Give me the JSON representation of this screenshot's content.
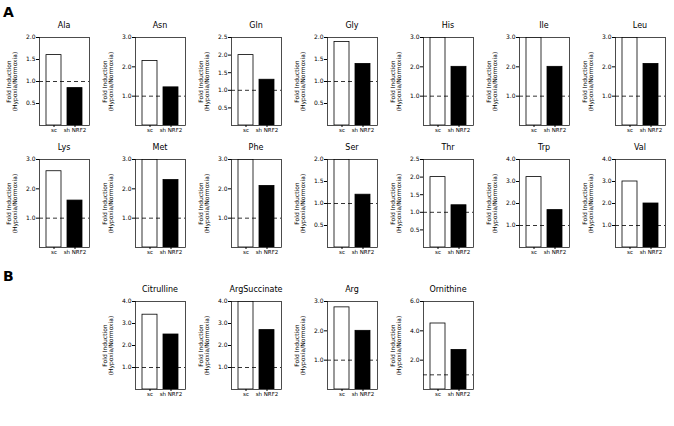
{
  "chart_data": [
    {
      "type": "bar",
      "title": "Ala",
      "annotations": [
        "A"
      ],
      "categories": [
        "sc",
        "sh NRF2"
      ],
      "values": [
        1.6,
        0.85
      ],
      "colors": [
        "white",
        "black"
      ],
      "ylim": [
        0,
        2
      ],
      "yticks": [
        0.5,
        {
          "value": 1,
          "label": "1.0"
        },
        1.5,
        {
          "value": 2,
          "label": "2.0"
        }
      ],
      "ylabel": "Fold Induction\n(Hypoxia/Normoxia)",
      "hline": 1
    },
    {
      "type": "bar",
      "title": "Asn",
      "categories": [
        "sc",
        "sh NRF2"
      ],
      "values": [
        2.2,
        1.3
      ],
      "colors": [
        "white",
        "black"
      ],
      "ylim": [
        0,
        3
      ],
      "yticks": [
        {
          "value": 1,
          "label": "1.0"
        },
        {
          "value": 2,
          "label": "2.0"
        },
        {
          "value": 3,
          "label": "3.0"
        }
      ],
      "ylabel": "Fold Induction\n(Hypoxia/Normoxia)",
      "hline": 1
    },
    {
      "type": "bar",
      "title": "Gln",
      "categories": [
        "sc",
        "sh NRF2"
      ],
      "values": [
        2.0,
        1.3
      ],
      "colors": [
        "white",
        "black"
      ],
      "ylim": [
        0,
        2.5
      ],
      "yticks": [
        0.5,
        {
          "value": 1,
          "label": "1.0"
        },
        1.5,
        {
          "value": 2,
          "label": "2.0"
        },
        2.5
      ],
      "ylabel": "Fold Induction\n(Hypoxia/Normoxia)",
      "hline": 1
    },
    {
      "type": "bar",
      "title": "Gly",
      "categories": [
        "sc",
        "sh NRF2"
      ],
      "values": [
        1.9,
        1.4
      ],
      "colors": [
        "white",
        "black"
      ],
      "ylim": [
        0,
        2
      ],
      "yticks": [
        0.5,
        {
          "value": 1,
          "label": "1.0"
        },
        1.5,
        {
          "value": 2,
          "label": "2.0"
        }
      ],
      "ylabel": "Fold Induction\n(Hypoxia/Normoxia)",
      "hline": 1
    },
    {
      "type": "bar",
      "title": "His",
      "categories": [
        "sc",
        "sh NRF2"
      ],
      "values": [
        3.0,
        2.0
      ],
      "colors": [
        "white",
        "black"
      ],
      "ylim": [
        0,
        3
      ],
      "yticks": [
        {
          "value": 1,
          "label": "1.0"
        },
        {
          "value": 2,
          "label": "2.0"
        },
        {
          "value": 3,
          "label": "3.0"
        }
      ],
      "ylabel": "Fold Induction\n(Hypoxia/Normoxia)",
      "hline": 1
    },
    {
      "type": "bar",
      "title": "Ile",
      "categories": [
        "sc",
        "sh NRF2"
      ],
      "values": [
        3.0,
        2.0
      ],
      "colors": [
        "white",
        "black"
      ],
      "ylim": [
        0,
        3
      ],
      "yticks": [
        {
          "value": 1,
          "label": "1.0"
        },
        {
          "value": 2,
          "label": "2.0"
        },
        {
          "value": 3,
          "label": "3.0"
        }
      ],
      "ylabel": "Fold Induction\n(Hypoxia/Normoxia)",
      "hline": 1
    },
    {
      "type": "bar",
      "title": "Leu",
      "categories": [
        "sc",
        "sh NRF2"
      ],
      "values": [
        3.0,
        2.1
      ],
      "colors": [
        "white",
        "black"
      ],
      "ylim": [
        0,
        3
      ],
      "yticks": [
        {
          "value": 1,
          "label": "1.0"
        },
        {
          "value": 2,
          "label": "2.0"
        },
        {
          "value": 3,
          "label": "3.0"
        }
      ],
      "ylabel": "Fold Induction\n(Hypoxia/Normoxia)",
      "hline": 1
    },
    {
      "type": "bar",
      "title": "Lys",
      "categories": [
        "sc",
        "sh NRF2"
      ],
      "values": [
        2.6,
        1.6
      ],
      "colors": [
        "white",
        "black"
      ],
      "ylim": [
        0,
        3
      ],
      "yticks": [
        {
          "value": 1,
          "label": "1.0"
        },
        {
          "value": 2,
          "label": "2.0"
        },
        {
          "value": 3,
          "label": "3.0"
        }
      ],
      "ylabel": "Fold Induction\n(Hypoxia/Normoxia)",
      "hline": 1
    },
    {
      "type": "bar",
      "title": "Met",
      "categories": [
        "sc",
        "sh NRF2"
      ],
      "values": [
        3.0,
        2.3
      ],
      "colors": [
        "white",
        "black"
      ],
      "ylim": [
        0,
        3
      ],
      "yticks": [
        {
          "value": 1,
          "label": "1.0"
        },
        {
          "value": 2,
          "label": "2.0"
        },
        {
          "value": 3,
          "label": "3.0"
        }
      ],
      "ylabel": "Fold Induction\n(Hypoxia/Normoxia)",
      "hline": 1
    },
    {
      "type": "bar",
      "title": "Phe",
      "categories": [
        "sc",
        "sh NRF2"
      ],
      "values": [
        3.0,
        2.1
      ],
      "colors": [
        "white",
        "black"
      ],
      "ylim": [
        0,
        3
      ],
      "yticks": [
        {
          "value": 1,
          "label": "1.0"
        },
        {
          "value": 2,
          "label": "2.0"
        },
        {
          "value": 3,
          "label": "3.0"
        }
      ],
      "ylabel": "Fold Induction\n(Hypoxia/Normoxia)",
      "hline": 1
    },
    {
      "type": "bar",
      "title": "Ser",
      "categories": [
        "sc",
        "sh NRF2"
      ],
      "values": [
        2.0,
        1.2
      ],
      "colors": [
        "white",
        "black"
      ],
      "ylim": [
        0,
        2
      ],
      "yticks": [
        0.5,
        {
          "value": 1,
          "label": "1.0"
        },
        1.5,
        {
          "value": 2,
          "label": "2.0"
        }
      ],
      "ylabel": "Fold Induction\n(Hypoxia/Normoxia)",
      "hline": 1
    },
    {
      "type": "bar",
      "title": "Thr",
      "categories": [
        "sc",
        "sh NRF2"
      ],
      "values": [
        2.0,
        1.2
      ],
      "colors": [
        "white",
        "black"
      ],
      "ylim": [
        0,
        2.5
      ],
      "yticks": [
        0.5,
        {
          "value": 1,
          "label": "1.0"
        },
        1.5,
        {
          "value": 2,
          "label": "2.0"
        },
        2.5
      ],
      "ylabel": "Fold Induction\n(Hypoxia/Normoxia)",
      "hline": 1
    },
    {
      "type": "bar",
      "title": "Trp",
      "categories": [
        "sc",
        "sh NRF2"
      ],
      "values": [
        3.2,
        1.7
      ],
      "colors": [
        "white",
        "black"
      ],
      "ylim": [
        0,
        4
      ],
      "yticks": [
        {
          "value": 1,
          "label": "1.0"
        },
        {
          "value": 2,
          "label": "2.0"
        },
        {
          "value": 3,
          "label": "3.0"
        },
        {
          "value": 4,
          "label": "4.0"
        }
      ],
      "ylabel": "Fold Induction\n(Hypoxia/Normoxia)",
      "hline": 1
    },
    {
      "type": "bar",
      "title": "Val",
      "categories": [
        "sc",
        "sh NRF2"
      ],
      "values": [
        3.0,
        2.0
      ],
      "colors": [
        "white",
        "black"
      ],
      "ylim": [
        0,
        4
      ],
      "yticks": [
        {
          "value": 1,
          "label": "1.0"
        },
        {
          "value": 2,
          "label": "2.0"
        },
        {
          "value": 3,
          "label": "3.0"
        },
        {
          "value": 4,
          "label": "4.0"
        }
      ],
      "ylabel": "Fold Induction\n(Hypoxia/Normoxia)",
      "hline": 1
    },
    {
      "type": "bar",
      "title": "Citrulline",
      "annotations": [
        "B"
      ],
      "categories": [
        "sc",
        "sh NRF2"
      ],
      "values": [
        3.4,
        2.5
      ],
      "colors": [
        "white",
        "black"
      ],
      "ylim": [
        0,
        4
      ],
      "yticks": [
        {
          "value": 1,
          "label": "1.0"
        },
        {
          "value": 2,
          "label": "2.0"
        },
        {
          "value": 3,
          "label": "3.0"
        },
        {
          "value": 4,
          "label": "4.0"
        }
      ],
      "ylabel": "Fold Induction\n(Hypoxia/Normoxia)",
      "hline": 1
    },
    {
      "type": "bar",
      "title": "ArgSuccinate",
      "categories": [
        "sc",
        "sh NRF2"
      ],
      "values": [
        4.0,
        2.7
      ],
      "colors": [
        "white",
        "black"
      ],
      "ylim": [
        0,
        4
      ],
      "yticks": [
        {
          "value": 1,
          "label": "1.0"
        },
        {
          "value": 2,
          "label": "2.0"
        },
        {
          "value": 3,
          "label": "3.0"
        },
        {
          "value": 4,
          "label": "4.0"
        }
      ],
      "ylabel": "Fold Induction\n(Hypoxia/Normoxia)",
      "hline": 1
    },
    {
      "type": "bar",
      "title": "Arg",
      "categories": [
        "sc",
        "sh NRF2"
      ],
      "values": [
        2.8,
        2.0
      ],
      "colors": [
        "white",
        "black"
      ],
      "ylim": [
        0,
        3
      ],
      "yticks": [
        {
          "value": 1,
          "label": "1.0"
        },
        {
          "value": 2,
          "label": "2.0"
        },
        {
          "value": 3,
          "label": "3.0"
        }
      ],
      "ylabel": "Fold Induction\n(Hypoxia/Normoxia)",
      "hline": 1
    },
    {
      "type": "bar",
      "title": "Ornithine",
      "categories": [
        "sc",
        "sh NRF2"
      ],
      "values": [
        4.5,
        2.7
      ],
      "colors": [
        "white",
        "black"
      ],
      "ylim": [
        0,
        6
      ],
      "yticks": [
        {
          "value": 2,
          "label": "2.0"
        },
        {
          "value": 4,
          "label": "4.0"
        },
        {
          "value": 6,
          "label": "6.0"
        }
      ],
      "ylabel": "Fold Induction\n(Hypoxia/Normoxia)",
      "hline": 1
    }
  ]
}
